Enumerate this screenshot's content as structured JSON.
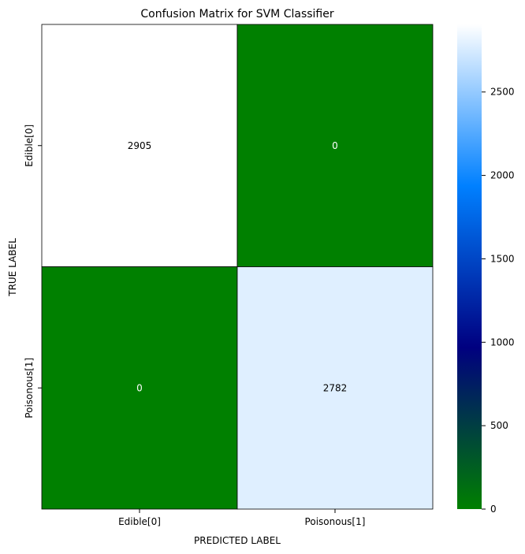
{
  "chart_data": {
    "type": "heatmap",
    "title": "Confusion Matrix for SVM Classifier",
    "xlabel": "PREDICTED LABEL",
    "ylabel": "TRUE LABEL",
    "x_categories": [
      "Edible[0]",
      "Poisonous[1]"
    ],
    "y_categories": [
      "Edible[0]",
      "Poisonous[1]"
    ],
    "values": [
      [
        2905,
        0
      ],
      [
        0,
        2782
      ]
    ],
    "cell_labels": [
      [
        "2905",
        "0"
      ],
      [
        "0",
        "2782"
      ]
    ],
    "colormap": "ocean",
    "vmin": 0,
    "vmax": 2905,
    "colorbar_ticks": [
      0,
      500,
      1000,
      1500,
      2000,
      2500
    ],
    "colorbar_tick_labels": [
      "0",
      "500",
      "1000",
      "1500",
      "2000",
      "2500"
    ],
    "colormap_stops": [
      "#008000",
      "#000080",
      "#0080ff",
      "#ffffff"
    ],
    "annotation_colors": {
      "light": "#000000",
      "dark": "#ffffff"
    },
    "cell_line_color": "#000000"
  }
}
